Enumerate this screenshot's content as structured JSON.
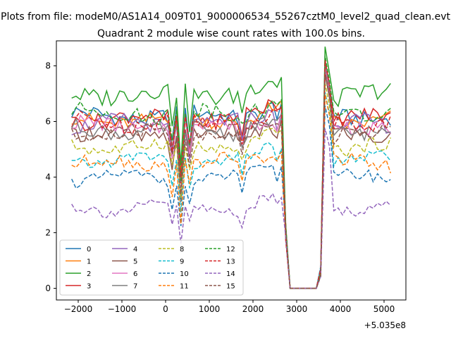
{
  "chart_data": {
    "type": "line",
    "suptitle": "Plots from file: modeM0/AS1A14_009T01_9000006534_55267cztM0_level2_quad_clean.evt",
    "title": "Quadrant 2 module wise count rates with 100.0s bins.",
    "xlabel": "",
    "ylabel": "",
    "x_offset_label": "+5.035e8",
    "xlim": [
      -2500,
      5500
    ],
    "ylim": [
      -0.42,
      8.9
    ],
    "xticks": [
      -2000,
      -1000,
      0,
      1000,
      2000,
      3000,
      4000,
      5000
    ],
    "yticks": [
      0,
      2,
      4,
      6,
      8
    ],
    "x_start": -2150,
    "x_step": 100,
    "n_points": 74,
    "grid": false,
    "legend": {
      "placement": "lower-left",
      "columns": 4
    },
    "series": [
      {
        "name": "0",
        "color": "#1f77b4",
        "dash": "solid",
        "base": 6.2,
        "wobble": 0.3,
        "peak_scale": 1.0
      },
      {
        "name": "1",
        "color": "#ff7f0e",
        "dash": "solid",
        "base": 6.05,
        "wobble": 0.28,
        "peak_scale": 0.98
      },
      {
        "name": "2",
        "color": "#2ca02c",
        "dash": "solid",
        "base": 7.0,
        "wobble": 0.35,
        "peak_scale": 1.06
      },
      {
        "name": "3",
        "color": "#d62728",
        "dash": "solid",
        "base": 6.1,
        "wobble": 0.3,
        "peak_scale": 1.0
      },
      {
        "name": "4",
        "color": "#9467bd",
        "dash": "solid",
        "base": 5.9,
        "wobble": 0.28,
        "peak_scale": 0.96
      },
      {
        "name": "5",
        "color": "#8c564b",
        "dash": "solid",
        "base": 5.5,
        "wobble": 0.3,
        "peak_scale": 0.94
      },
      {
        "name": "6",
        "color": "#e377c2",
        "dash": "solid",
        "base": 5.85,
        "wobble": 0.28,
        "peak_scale": 0.97
      },
      {
        "name": "7",
        "color": "#7f7f7f",
        "dash": "solid",
        "base": 5.7,
        "wobble": 0.28,
        "peak_scale": 0.99
      },
      {
        "name": "8",
        "color": "#bcbd22",
        "dash": "dashed",
        "base": 5.1,
        "wobble": 0.25,
        "peak_scale": 0.9
      },
      {
        "name": "9",
        "color": "#17becf",
        "dash": "dashed",
        "base": 4.6,
        "wobble": 0.22,
        "peak_scale": 0.86
      },
      {
        "name": "10",
        "color": "#1f77b4",
        "dash": "dashed",
        "base": 3.95,
        "wobble": 0.22,
        "peak_scale": 0.8
      },
      {
        "name": "11",
        "color": "#ff7f0e",
        "dash": "dashed",
        "base": 4.5,
        "wobble": 0.25,
        "peak_scale": 0.85
      },
      {
        "name": "12",
        "color": "#2ca02c",
        "dash": "dashed",
        "base": 6.3,
        "wobble": 0.3,
        "peak_scale": 1.02
      },
      {
        "name": "13",
        "color": "#d62728",
        "dash": "dashed",
        "base": 6.0,
        "wobble": 0.3,
        "peak_scale": 1.0
      },
      {
        "name": "14",
        "color": "#9467bd",
        "dash": "dashed",
        "base": 2.9,
        "wobble": 0.22,
        "peak_scale": 0.7
      },
      {
        "name": "15",
        "color": "#8c564b",
        "dash": "dashed",
        "base": 5.55,
        "wobble": 0.28,
        "peak_scale": 0.95
      }
    ]
  }
}
